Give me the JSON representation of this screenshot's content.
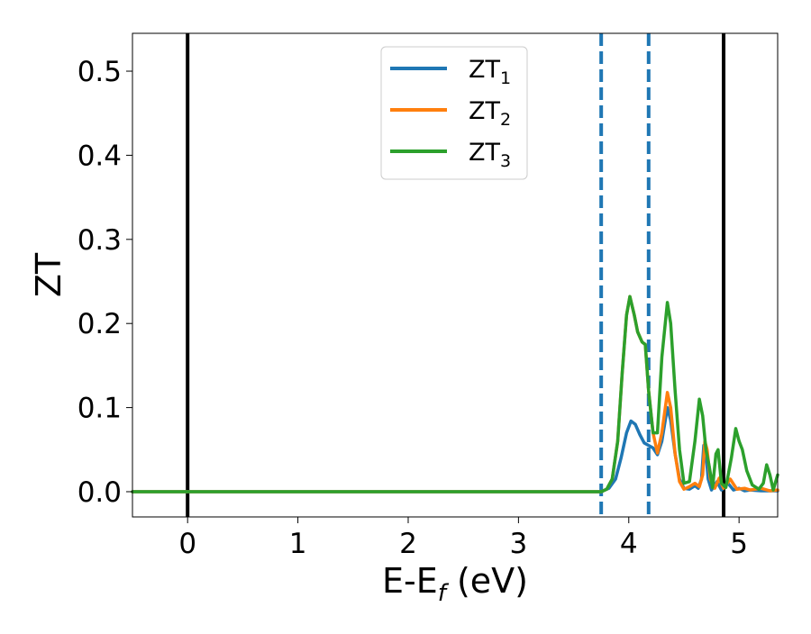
{
  "chart_data": {
    "type": "line",
    "title": "",
    "xlabel": "E-E",
    "xlabel_sub": "f",
    "xlabel_unit": " (eV)",
    "ylabel": "ZT",
    "xlim": [
      -0.5,
      5.35
    ],
    "ylim": [
      -0.03,
      0.545
    ],
    "xticks": [
      0,
      1,
      2,
      3,
      4,
      5
    ],
    "yticks": [
      0.0,
      0.1,
      0.2,
      0.3,
      0.4,
      0.5
    ],
    "grid": false,
    "legend_position": "top-center",
    "reference_lines": [
      {
        "x": 0.0,
        "style": "solid",
        "color": "#000000"
      },
      {
        "x": 3.75,
        "style": "dashed",
        "color": "#1f77b4"
      },
      {
        "x": 4.18,
        "style": "dashed",
        "color": "#1f77b4"
      },
      {
        "x": 4.86,
        "style": "solid",
        "color": "#000000"
      }
    ],
    "series": [
      {
        "name": "ZT",
        "name_sub": "1",
        "color": "#1f77b4",
        "points": [
          [
            -0.5,
            0
          ],
          [
            3.75,
            0
          ],
          [
            3.82,
            0.004
          ],
          [
            3.88,
            0.015
          ],
          [
            3.93,
            0.04
          ],
          [
            3.98,
            0.07
          ],
          [
            4.02,
            0.084
          ],
          [
            4.06,
            0.08
          ],
          [
            4.1,
            0.068
          ],
          [
            4.14,
            0.058
          ],
          [
            4.18,
            0.055
          ],
          [
            4.22,
            0.052
          ],
          [
            4.26,
            0.044
          ],
          [
            4.3,
            0.06
          ],
          [
            4.35,
            0.1
          ],
          [
            4.38,
            0.085
          ],
          [
            4.42,
            0.045
          ],
          [
            4.46,
            0.015
          ],
          [
            4.5,
            0.004
          ],
          [
            4.55,
            0.003
          ],
          [
            4.6,
            0.007
          ],
          [
            4.63,
            0.004
          ],
          [
            4.66,
            0.015
          ],
          [
            4.68,
            0.055
          ],
          [
            4.7,
            0.045
          ],
          [
            4.72,
            0.015
          ],
          [
            4.75,
            0.002
          ],
          [
            4.8,
            0.012
          ],
          [
            4.84,
            0.002
          ],
          [
            4.9,
            0.01
          ],
          [
            4.95,
            0.002
          ],
          [
            5.0,
            0.004
          ],
          [
            5.05,
            0.001
          ],
          [
            5.1,
            0.002
          ],
          [
            5.2,
            0.001
          ],
          [
            5.35,
            0.001
          ]
        ]
      },
      {
        "name": "ZT",
        "name_sub": "2",
        "color": "#ff7f0e",
        "points": [
          [
            -0.5,
            0
          ],
          [
            3.75,
            0
          ],
          [
            3.8,
            0.003
          ],
          [
            3.85,
            0.015
          ],
          [
            3.9,
            0.06
          ],
          [
            3.94,
            0.14
          ],
          [
            3.98,
            0.21
          ],
          [
            4.01,
            0.232
          ],
          [
            4.05,
            0.21
          ],
          [
            4.08,
            0.19
          ],
          [
            4.12,
            0.178
          ],
          [
            4.15,
            0.175
          ],
          [
            4.18,
            0.12
          ],
          [
            4.22,
            0.07
          ],
          [
            4.26,
            0.046
          ],
          [
            4.3,
            0.07
          ],
          [
            4.35,
            0.118
          ],
          [
            4.38,
            0.1
          ],
          [
            4.42,
            0.045
          ],
          [
            4.46,
            0.012
          ],
          [
            4.5,
            0.003
          ],
          [
            4.55,
            0.006
          ],
          [
            4.6,
            0.01
          ],
          [
            4.64,
            0.006
          ],
          [
            4.67,
            0.02
          ],
          [
            4.69,
            0.06
          ],
          [
            4.71,
            0.05
          ],
          [
            4.74,
            0.015
          ],
          [
            4.78,
            0.004
          ],
          [
            4.82,
            0.016
          ],
          [
            4.86,
            0.004
          ],
          [
            4.92,
            0.015
          ],
          [
            4.98,
            0.003
          ],
          [
            5.05,
            0.004
          ],
          [
            5.1,
            0.002
          ],
          [
            5.2,
            0.004
          ],
          [
            5.28,
            0.001
          ],
          [
            5.35,
            0.002
          ]
        ]
      },
      {
        "name": "ZT",
        "name_sub": "3",
        "color": "#2ca02c",
        "points": [
          [
            -0.5,
            0
          ],
          [
            3.75,
            0
          ],
          [
            3.8,
            0.003
          ],
          [
            3.85,
            0.015
          ],
          [
            3.9,
            0.06
          ],
          [
            3.94,
            0.14
          ],
          [
            3.98,
            0.21
          ],
          [
            4.01,
            0.232
          ],
          [
            4.05,
            0.21
          ],
          [
            4.08,
            0.19
          ],
          [
            4.12,
            0.178
          ],
          [
            4.15,
            0.175
          ],
          [
            4.18,
            0.12
          ],
          [
            4.22,
            0.07
          ],
          [
            4.26,
            0.07
          ],
          [
            4.3,
            0.16
          ],
          [
            4.35,
            0.225
          ],
          [
            4.38,
            0.2
          ],
          [
            4.42,
            0.12
          ],
          [
            4.46,
            0.05
          ],
          [
            4.5,
            0.01
          ],
          [
            4.55,
            0.012
          ],
          [
            4.6,
            0.06
          ],
          [
            4.64,
            0.11
          ],
          [
            4.67,
            0.09
          ],
          [
            4.7,
            0.05
          ],
          [
            4.73,
            0.03
          ],
          [
            4.76,
            0.005
          ],
          [
            4.79,
            0.045
          ],
          [
            4.81,
            0.05
          ],
          [
            4.84,
            0.01
          ],
          [
            4.88,
            0.005
          ],
          [
            4.93,
            0.04
          ],
          [
            4.97,
            0.075
          ],
          [
            5.0,
            0.06
          ],
          [
            5.03,
            0.05
          ],
          [
            5.07,
            0.025
          ],
          [
            5.12,
            0.008
          ],
          [
            5.18,
            0.003
          ],
          [
            5.22,
            0.01
          ],
          [
            5.25,
            0.032
          ],
          [
            5.28,
            0.02
          ],
          [
            5.31,
            0.002
          ],
          [
            5.35,
            0.02
          ]
        ]
      }
    ]
  }
}
